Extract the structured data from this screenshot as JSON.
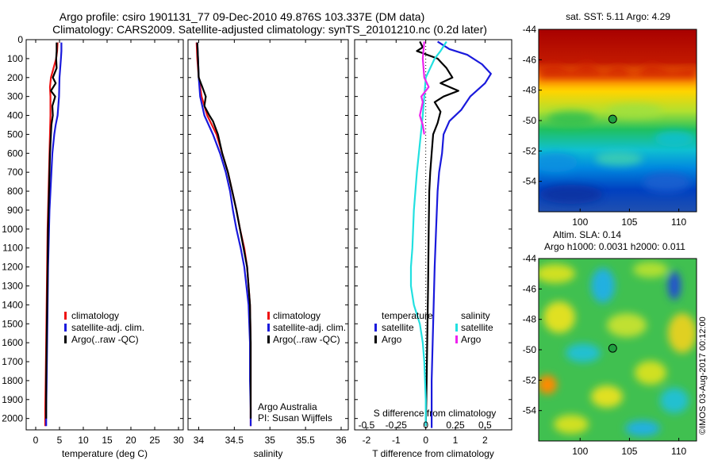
{
  "header": {
    "line1": "Argo profile: csiro 1901131_77 09-Dec-2010 49.876S 103.337E (DM data)",
    "line2": "Climatology: CARS2009. Satellite-adjusted climatology: synTS_20101210.nc (0.2d later)"
  },
  "colors": {
    "climatology": "#ee1111",
    "satellite": "#1a1adc",
    "argo": "#000000",
    "sat_salinity": "#22e0e0",
    "argo_salinity": "#ee22ee"
  },
  "depth_ticks": [
    0,
    100,
    200,
    300,
    400,
    500,
    600,
    700,
    800,
    900,
    1000,
    1100,
    1200,
    1300,
    1400,
    1500,
    1600,
    1700,
    1800,
    1900,
    2000
  ],
  "chart_data": [
    {
      "type": "line",
      "xlabel": "temperature (deg C)",
      "xlim": [
        -2,
        31
      ],
      "ylim": [
        2060,
        0
      ],
      "xticks": [
        0,
        5,
        10,
        15,
        20,
        25,
        30
      ],
      "tick_labels": [
        "0",
        "5",
        "10",
        "15",
        "20",
        "25",
        "30"
      ],
      "legend": [
        "climatology",
        "satellite-adj. clim.",
        "Argo(..raw -QC)"
      ],
      "series": [
        {
          "name": "climatology",
          "key": "climatology",
          "points": [
            [
              4.6,
              15
            ],
            [
              4.5,
              60
            ],
            [
              4.3,
              100
            ],
            [
              3.2,
              200
            ],
            [
              3.0,
              250
            ],
            [
              3.1,
              300
            ],
            [
              3.1,
              400
            ],
            [
              3.0,
              500
            ],
            [
              2.9,
              600
            ],
            [
              2.8,
              700
            ],
            [
              2.7,
              800
            ],
            [
              2.6,
              900
            ],
            [
              2.5,
              1000
            ],
            [
              2.4,
              1200
            ],
            [
              2.3,
              1400
            ],
            [
              2.2,
              1600
            ],
            [
              2.1,
              1800
            ],
            [
              2.0,
              1950
            ],
            [
              2.0,
              2040
            ]
          ]
        },
        {
          "name": "satellite-adj. clim.",
          "key": "satellite",
          "points": [
            [
              5.4,
              15
            ],
            [
              5.4,
              60
            ],
            [
              5.3,
              100
            ],
            [
              5.0,
              200
            ],
            [
              4.9,
              300
            ],
            [
              4.6,
              400
            ],
            [
              4.2,
              450
            ],
            [
              3.9,
              500
            ],
            [
              3.5,
              600
            ],
            [
              3.3,
              700
            ],
            [
              3.1,
              800
            ],
            [
              2.9,
              900
            ],
            [
              2.8,
              1000
            ],
            [
              2.6,
              1200
            ],
            [
              2.5,
              1400
            ],
            [
              2.4,
              1600
            ],
            [
              2.3,
              1800
            ],
            [
              2.2,
              1950
            ],
            [
              2.2,
              2040
            ]
          ]
        },
        {
          "name": "Argo(..raw -QC)",
          "key": "argo",
          "points": [
            [
              4.4,
              15
            ],
            [
              4.4,
              60
            ],
            [
              4.3,
              100
            ],
            [
              4.4,
              150
            ],
            [
              3.6,
              200
            ],
            [
              4.2,
              230
            ],
            [
              3.2,
              270
            ],
            [
              4.1,
              300
            ],
            [
              3.5,
              350
            ],
            [
              3.6,
              400
            ],
            [
              3.3,
              450
            ],
            [
              3.2,
              500
            ],
            [
              3.0,
              600
            ],
            [
              2.9,
              700
            ],
            [
              2.8,
              800
            ],
            [
              2.7,
              900
            ],
            [
              2.6,
              1000
            ],
            [
              2.5,
              1200
            ],
            [
              2.4,
              1400
            ],
            [
              2.3,
              1600
            ],
            [
              2.2,
              1800
            ],
            [
              2.2,
              2000
            ]
          ]
        }
      ]
    },
    {
      "type": "line",
      "xlabel": "salinity",
      "xlim": [
        33.85,
        36.1
      ],
      "ylim": [
        2060,
        0
      ],
      "xticks": [
        34,
        34.5,
        35,
        35.5,
        36
      ],
      "tick_labels": [
        "34",
        "34.5",
        "35",
        "35.5",
        "36"
      ],
      "legend": [
        "climatology",
        "satellite-adj. clim.",
        "Argo(..raw -QC)"
      ],
      "annotation": [
        "Argo Australia",
        "PI: Susan Wijffels"
      ],
      "series": [
        {
          "name": "climatology",
          "key": "climatology",
          "points": [
            [
              33.97,
              15
            ],
            [
              33.98,
              100
            ],
            [
              34.0,
              200
            ],
            [
              34.04,
              300
            ],
            [
              34.12,
              400
            ],
            [
              34.25,
              500
            ],
            [
              34.33,
              600
            ],
            [
              34.41,
              700
            ],
            [
              34.47,
              800
            ],
            [
              34.53,
              900
            ],
            [
              34.58,
              1000
            ],
            [
              34.64,
              1100
            ],
            [
              34.68,
              1200
            ],
            [
              34.7,
              1300
            ],
            [
              34.72,
              1400
            ],
            [
              34.73,
              1600
            ],
            [
              34.73,
              1800
            ],
            [
              34.73,
              1900
            ],
            [
              34.73,
              2040
            ]
          ]
        },
        {
          "name": "satellite-adj. clim.",
          "key": "satellite",
          "points": [
            [
              33.98,
              15
            ],
            [
              33.99,
              100
            ],
            [
              34.0,
              200
            ],
            [
              34.02,
              300
            ],
            [
              34.08,
              400
            ],
            [
              34.2,
              500
            ],
            [
              34.3,
              600
            ],
            [
              34.38,
              700
            ],
            [
              34.44,
              800
            ],
            [
              34.48,
              900
            ],
            [
              34.53,
              1000
            ],
            [
              34.59,
              1100
            ],
            [
              34.64,
              1200
            ],
            [
              34.67,
              1300
            ],
            [
              34.7,
              1400
            ],
            [
              34.72,
              1600
            ],
            [
              34.72,
              1800
            ],
            [
              34.73,
              1950
            ],
            [
              34.73,
              2040
            ]
          ]
        },
        {
          "name": "Argo(..raw -QC)",
          "key": "argo",
          "points": [
            [
              33.98,
              15
            ],
            [
              33.99,
              100
            ],
            [
              34.0,
              200
            ],
            [
              34.05,
              250
            ],
            [
              34.1,
              300
            ],
            [
              34.08,
              350
            ],
            [
              34.15,
              400
            ],
            [
              34.2,
              430
            ],
            [
              34.27,
              500
            ],
            [
              34.33,
              600
            ],
            [
              34.41,
              700
            ],
            [
              34.47,
              800
            ],
            [
              34.53,
              900
            ],
            [
              34.58,
              1000
            ],
            [
              34.63,
              1100
            ],
            [
              34.68,
              1200
            ],
            [
              34.7,
              1300
            ],
            [
              34.72,
              1400
            ],
            [
              34.73,
              1600
            ],
            [
              34.73,
              1800
            ],
            [
              34.73,
              2000
            ]
          ]
        }
      ]
    },
    {
      "type": "line",
      "xlabel": "T difference from climatology",
      "xlabel_top": "S difference from climatology",
      "xlim": [
        -2.4,
        2.9
      ],
      "ylim": [
        2060,
        0
      ],
      "xticks": [
        -2,
        -1,
        0,
        1,
        2
      ],
      "tick_labels": [
        "-2",
        "-1",
        "0",
        "1",
        "2"
      ],
      "s_tick_labels": [
        "-0.5",
        "-0.25",
        "0",
        "0.25",
        "0.5"
      ],
      "legend_groups": [
        {
          "title": "temperature",
          "items": [
            "satellite",
            "Argo"
          ]
        },
        {
          "title": "salinity",
          "items": [
            "satellite",
            "Argo"
          ]
        }
      ],
      "series": [
        {
          "name": "temperature satellite",
          "key": "satellite",
          "points": [
            [
              0.4,
              10
            ],
            [
              0.8,
              50
            ],
            [
              1.4,
              80
            ],
            [
              1.9,
              130
            ],
            [
              2.2,
              180
            ],
            [
              2.0,
              230
            ],
            [
              1.5,
              300
            ],
            [
              1.2,
              370
            ],
            [
              0.8,
              430
            ],
            [
              0.6,
              500
            ],
            [
              0.55,
              600
            ],
            [
              0.45,
              700
            ],
            [
              0.4,
              800
            ],
            [
              0.35,
              1000
            ],
            [
              0.3,
              1200
            ],
            [
              0.25,
              1500
            ],
            [
              0.2,
              1800
            ],
            [
              0.2,
              2050
            ]
          ]
        },
        {
          "name": "temperature Argo",
          "key": "argo",
          "points": [
            [
              -0.2,
              10
            ],
            [
              -0.1,
              40
            ],
            [
              -0.3,
              60
            ],
            [
              0.4,
              100
            ],
            [
              0.7,
              150
            ],
            [
              0.9,
              200
            ],
            [
              0.5,
              230
            ],
            [
              1.1,
              270
            ],
            [
              0.6,
              300
            ],
            [
              0.3,
              330
            ],
            [
              0.5,
              380
            ],
            [
              0.4,
              440
            ],
            [
              0.25,
              500
            ],
            [
              0.2,
              600
            ],
            [
              0.15,
              700
            ],
            [
              0.12,
              800
            ],
            [
              0.1,
              1000
            ],
            [
              0.08,
              1300
            ],
            [
              0.05,
              1600
            ],
            [
              0.02,
              1900
            ],
            [
              0.0,
              2040
            ]
          ]
        },
        {
          "name": "salinity satellite",
          "key": "sat_salinity",
          "points": [
            [
              0.7,
              10
            ],
            [
              0.5,
              60
            ],
            [
              0.3,
              100
            ],
            [
              0.0,
              200
            ],
            [
              -0.1,
              400
            ],
            [
              -0.2,
              550
            ],
            [
              -0.3,
              700
            ],
            [
              -0.4,
              900
            ],
            [
              -0.45,
              1100
            ],
            [
              -0.5,
              1200
            ],
            [
              -0.5,
              1300
            ],
            [
              -0.4,
              1400
            ],
            [
              -0.2,
              1500
            ],
            [
              -0.1,
              1600
            ],
            [
              -0.05,
              1700
            ],
            [
              0.0,
              1900
            ],
            [
              0.0,
              2040
            ]
          ]
        },
        {
          "name": "salinity Argo",
          "key": "argo_salinity",
          "points": [
            [
              -0.05,
              10
            ],
            [
              -0.1,
              100
            ],
            [
              -0.05,
              200
            ],
            [
              0.1,
              250
            ],
            [
              -0.15,
              300
            ],
            [
              -0.1,
              330
            ],
            [
              -0.2,
              400
            ],
            [
              -0.1,
              450
            ],
            [
              -0.05,
              500
            ]
          ]
        }
      ]
    },
    {
      "type": "heatmap",
      "title": "sat. SST: 5.11  Argo: 4.29",
      "xticks": [
        100,
        105,
        110
      ],
      "tick_labels": [
        "100",
        "105",
        "110"
      ],
      "xlim": [
        95.8,
        111.8
      ],
      "ylim": [
        -56,
        -44
      ],
      "yticks": [
        -44,
        -46,
        -48,
        -50,
        -52,
        -54
      ],
      "ytick_labels": [
        "-44",
        "-46",
        "-48",
        "-50",
        "-52",
        "-54"
      ],
      "marker": [
        103.3,
        -49.9
      ]
    },
    {
      "type": "heatmap",
      "title_lines": [
        "Altim. SLA: 0.14",
        "Argo h1000: 0.0031 h2000: 0.011"
      ],
      "xticks": [
        100,
        105,
        110
      ],
      "tick_labels": [
        "100",
        "105",
        "110"
      ],
      "xlim": [
        95.8,
        111.8
      ],
      "ylim": [
        -56,
        -44
      ],
      "yticks": [
        -44,
        -46,
        -48,
        -50,
        -52,
        -54
      ],
      "ytick_labels": [
        "-44",
        "-46",
        "-48",
        "-50",
        "-52",
        "-54"
      ],
      "marker": [
        103.3,
        -49.9
      ]
    }
  ],
  "watermark": "©IMOS 03-Aug-2017 00:12:00"
}
